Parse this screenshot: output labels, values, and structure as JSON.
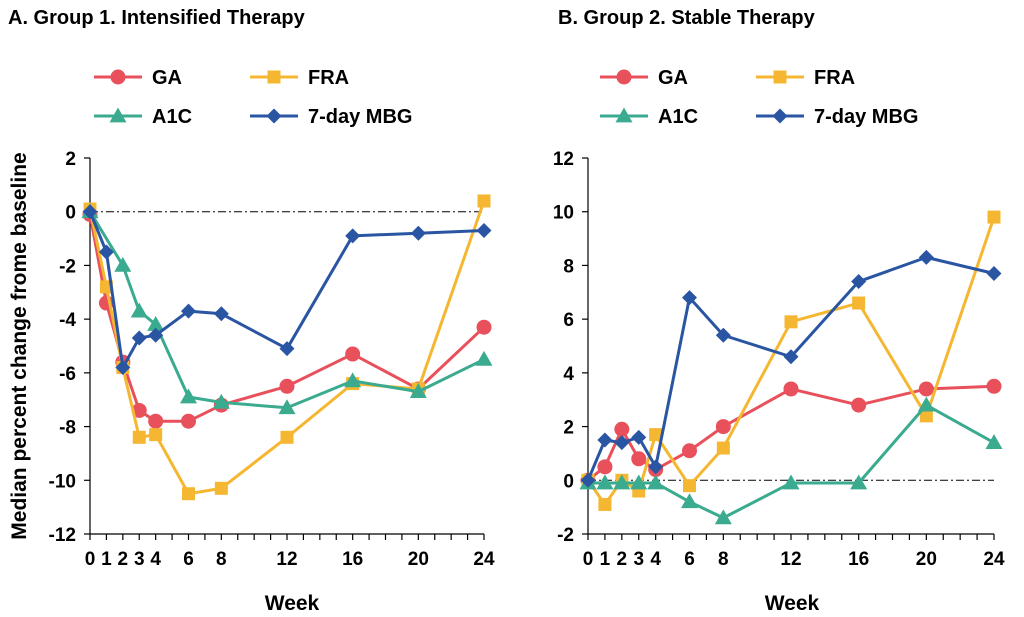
{
  "chart_data": [
    {
      "type": "line",
      "title": "A. Group 1. Intensified Therapy",
      "xlabel": "Week",
      "ylabel": "Median percent change frome baseline",
      "ylim": [
        -12,
        2
      ],
      "yticks": [
        2,
        0,
        -2,
        -4,
        -6,
        -8,
        -10,
        -12
      ],
      "xticks": [
        0,
        1,
        2,
        3,
        4,
        6,
        8,
        12,
        16,
        20,
        24
      ],
      "xlim": [
        0,
        24
      ],
      "reference_line": 0,
      "legend": "top",
      "series": [
        {
          "name": "GA",
          "color": "#e8505b",
          "marker": "circle",
          "x": [
            0,
            1,
            2,
            3,
            4,
            6,
            8,
            12,
            16,
            20,
            24
          ],
          "y": [
            -0.1,
            -3.4,
            -5.6,
            -7.4,
            -7.8,
            -7.8,
            -7.2,
            -6.5,
            -5.3,
            -6.6,
            -4.3
          ]
        },
        {
          "name": "FRA",
          "color": "#f5b731",
          "marker": "square",
          "x": [
            0,
            1,
            2,
            3,
            4,
            6,
            8,
            12,
            16,
            20,
            24
          ],
          "y": [
            0.1,
            -2.8,
            -5.8,
            -8.4,
            -8.3,
            -10.5,
            -10.3,
            -8.4,
            -6.4,
            -6.6,
            0.4
          ]
        },
        {
          "name": "A1C",
          "color": "#3aab8f",
          "marker": "triangle",
          "x": [
            0,
            2,
            3,
            4,
            6,
            8,
            12,
            16,
            20,
            24
          ],
          "y": [
            0,
            -2.0,
            -3.7,
            -4.2,
            -6.9,
            -7.1,
            -7.3,
            -6.3,
            -6.7,
            -5.5
          ]
        },
        {
          "name": "7-day MBG",
          "color": "#2a55a3",
          "marker": "diamond",
          "x": [
            0,
            1,
            2,
            3,
            4,
            6,
            8,
            12,
            16,
            20,
            24
          ],
          "y": [
            0,
            -1.5,
            -5.8,
            -4.7,
            -4.6,
            -3.7,
            -3.8,
            -5.1,
            -0.9,
            -0.8,
            -0.7
          ]
        }
      ]
    },
    {
      "type": "line",
      "title": "B. Group 2. Stable Therapy",
      "xlabel": "Week",
      "ylabel": "",
      "ylim": [
        -2,
        12
      ],
      "yticks": [
        12,
        10,
        8,
        6,
        4,
        2,
        0,
        -2
      ],
      "xticks": [
        0,
        1,
        2,
        3,
        4,
        6,
        8,
        12,
        16,
        20,
        24
      ],
      "xlim": [
        0,
        24
      ],
      "reference_line": 0,
      "legend": "top",
      "series": [
        {
          "name": "GA",
          "color": "#e8505b",
          "marker": "circle",
          "x": [
            0,
            1,
            2,
            3,
            4,
            6,
            8,
            12,
            16,
            20,
            24
          ],
          "y": [
            0,
            0.5,
            1.9,
            0.8,
            0.4,
            1.1,
            2.0,
            3.4,
            2.8,
            3.4,
            3.5
          ]
        },
        {
          "name": "FRA",
          "color": "#f5b731",
          "marker": "square",
          "x": [
            0,
            1,
            2,
            3,
            4,
            6,
            8,
            12,
            16,
            20,
            24
          ],
          "y": [
            0,
            -0.9,
            0,
            -0.4,
            1.7,
            -0.2,
            1.2,
            5.9,
            6.6,
            2.4,
            9.8
          ]
        },
        {
          "name": "A1C",
          "color": "#3aab8f",
          "marker": "triangle",
          "x": [
            0,
            1,
            2,
            3,
            4,
            6,
            8,
            12,
            16,
            20,
            24
          ],
          "y": [
            -0.1,
            -0.1,
            -0.1,
            -0.1,
            -0.1,
            -0.8,
            -1.4,
            -0.1,
            -0.1,
            2.8,
            1.4
          ]
        },
        {
          "name": "7-day MBG",
          "color": "#2a55a3",
          "marker": "diamond",
          "x": [
            0,
            1,
            2,
            3,
            4,
            6,
            8,
            12,
            16,
            20,
            24
          ],
          "y": [
            0,
            1.5,
            1.4,
            1.6,
            0.5,
            6.8,
            5.4,
            4.6,
            7.4,
            8.3,
            7.7
          ]
        }
      ]
    }
  ]
}
